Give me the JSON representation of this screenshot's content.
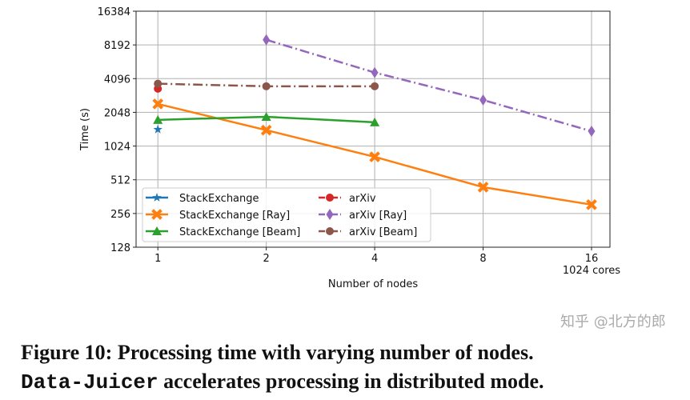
{
  "chart_data": {
    "type": "line",
    "title": "",
    "xlabel": "Number of nodes",
    "ylabel": "Time (s)",
    "x_scale": "log2",
    "y_scale": "log2",
    "ylim": [
      128,
      16384
    ],
    "xlim": [
      0.87,
      18
    ],
    "x_ticks": [
      1,
      2,
      4,
      8,
      16
    ],
    "y_ticks": [
      128,
      256,
      512,
      1024,
      2048,
      4096,
      8192,
      16384
    ],
    "x_annotation": "1024 cores",
    "grid": true,
    "legend_placement": "lower-left",
    "series": [
      {
        "name": "StackExchange",
        "color": "#1f77b4",
        "marker": "star",
        "line": "solid",
        "x": [
          1
        ],
        "y": [
          1440
        ]
      },
      {
        "name": "StackExchange [Ray]",
        "color": "#ff7f0e",
        "marker": "x",
        "line": "solid",
        "x": [
          1,
          2,
          4,
          8,
          16
        ],
        "y": [
          2435,
          1420,
          820,
          440,
          307
        ]
      },
      {
        "name": "StackExchange [Beam]",
        "color": "#2ca02c",
        "marker": "triangle",
        "line": "solid",
        "x": [
          1,
          2,
          4
        ],
        "y": [
          1755,
          1870,
          1670
        ]
      },
      {
        "name": "arXiv",
        "color": "#d62728",
        "marker": "circle",
        "line": "dashdot",
        "x": [
          1
        ],
        "y": [
          3330
        ]
      },
      {
        "name": "arXiv [Ray]",
        "color": "#9467bd",
        "marker": "diamond",
        "line": "dashdot",
        "x": [
          2,
          4,
          8,
          16
        ],
        "y": [
          9100,
          4640,
          2640,
          1390
        ]
      },
      {
        "name": "arXiv [Beam]",
        "color": "#8c564b",
        "marker": "circle",
        "line": "dashdot",
        "x": [
          1,
          2,
          4
        ],
        "y": [
          3690,
          3500,
          3500
        ]
      }
    ]
  },
  "caption": {
    "line1": "Figure 10: Processing time with varying number of nodes.",
    "line2_code": "Data-Juicer",
    "line2_rest": " accelerates processing in distributed mode."
  },
  "watermark": "知乎 @北方的郎"
}
